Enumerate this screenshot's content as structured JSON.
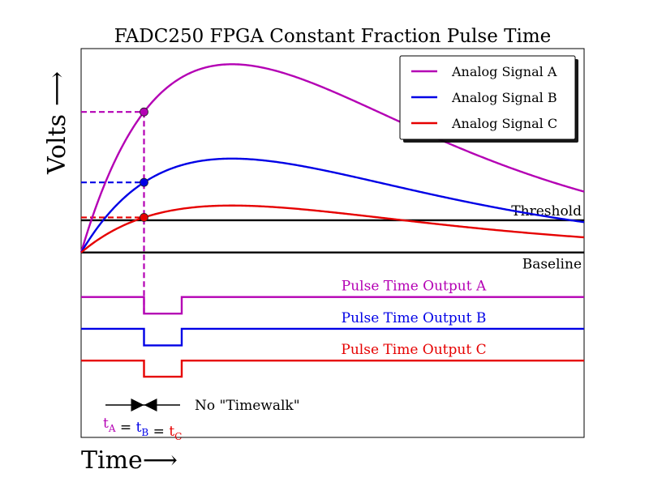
{
  "chart_data": {
    "type": "line",
    "title": "FADC250 FPGA Constant Fraction Pulse Time",
    "xlabel": "Time",
    "ylabel": "Volts",
    "xlabel_arrow": "⟶",
    "ylabel_arrow": "⟶",
    "xlim": [
      0,
      10
    ],
    "ylim": [
      -3.9,
      4.3
    ],
    "grid": false,
    "legend_position": "top-right",
    "series": [
      {
        "name": "Analog Signal A",
        "color": "#b400b4",
        "amplitude": 3.97,
        "shape": [
          1.0,
          3.0
        ]
      },
      {
        "name": "Analog Signal B",
        "color": "#0000e6",
        "amplitude": 1.98,
        "shape": [
          1.0,
          3.0
        ]
      },
      {
        "name": "Analog Signal C",
        "color": "#e60000",
        "amplitude": 0.99,
        "shape": [
          1.0,
          3.0
        ]
      }
    ],
    "reference_lines": [
      {
        "label": "Threshold",
        "y": 0.68
      },
      {
        "label": "Baseline",
        "y": 0
      }
    ],
    "crossing_time": 1.25,
    "crossing_fraction": 0.5,
    "pulse_outputs": [
      {
        "label": "Pulse Time Output A",
        "color": "#b400b4",
        "high": -0.94,
        "low": -1.29,
        "start": 1.25,
        "end": 2.0
      },
      {
        "label": "Pulse Time Output B",
        "color": "#0000e6",
        "high": -1.61,
        "low": -1.96,
        "start": 1.25,
        "end": 2.0
      },
      {
        "label": "Pulse Time Output C",
        "color": "#e60000",
        "high": -2.28,
        "low": -2.62,
        "start": 1.25,
        "end": 2.0
      }
    ],
    "annotation": {
      "text": "No \"Timewalk\"",
      "equation": {
        "t": "t",
        "eq": "=",
        "subscripts": [
          "A",
          "B",
          "C"
        ],
        "colors": [
          "#b400b4",
          "#0000e6",
          "#e60000"
        ]
      }
    }
  }
}
